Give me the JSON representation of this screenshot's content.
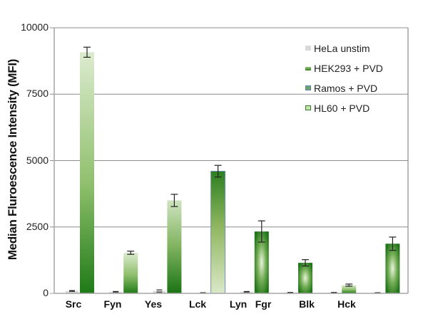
{
  "chart_data": {
    "type": "bar",
    "title": "",
    "xlabel": "",
    "ylabel": "Median Fluroescence Intensity (MFI)",
    "ylim": [
      0,
      10000
    ],
    "yticks": [
      0,
      2500,
      5000,
      7500,
      10000
    ],
    "grid": true,
    "legend_position": "upper right, inside plot",
    "categories": [
      "Src",
      "Fyn",
      "Yes",
      "Lck",
      "Lyn",
      "Fgr",
      "Blk",
      "Hck",
      ""
    ],
    "groups": [
      {
        "label": "Src",
        "hela": 90,
        "hela_err": 15,
        "stim": 9080,
        "stim_err": 190,
        "stim_series": "HEK293 + PVD",
        "style": "light-top"
      },
      {
        "label": "Fyn",
        "hela": 60,
        "hela_err": 10,
        "stim": 1530,
        "stim_err": 60,
        "stim_series": "HEK293 + PVD",
        "style": "light-top"
      },
      {
        "label": "Yes",
        "hela": 90,
        "hela_err": 40,
        "stim": 3500,
        "stim_err": 230,
        "stim_series": "HEK293 + PVD",
        "style": "dark-bottom"
      },
      {
        "label": "Lck",
        "hela": 20,
        "hela_err": 5,
        "stim": 4600,
        "stim_err": 220,
        "stim_series": "Ramos + PVD",
        "style": "dark-top"
      },
      {
        "label": "Lyn",
        "hela": 60,
        "hela_err": 10,
        "stim": 2330,
        "stim_err": 400,
        "stim_series": "HL60 + PVD",
        "style": "center-glow"
      },
      {
        "label": "Fgr",
        "hela": 30,
        "hela_err": 5,
        "stim": 1150,
        "stim_err": 120,
        "stim_series": "HL60 + PVD",
        "style": "center-glow"
      },
      {
        "label": "Blk",
        "hela": 30,
        "hela_err": 5,
        "stim": 310,
        "stim_err": 40,
        "stim_series": "HEK293 + PVD",
        "style": "light-top"
      },
      {
        "label": "Hck",
        "hela": 20,
        "hela_err": 5,
        "stim": 1870,
        "stim_err": 250,
        "stim_series": "HL60 + PVD",
        "style": "center-glow"
      }
    ],
    "series": [
      {
        "name": "HeLa unstim",
        "color": "#d9d9d9"
      },
      {
        "name": "HEK293 + PVD",
        "color": "#2e7d1e"
      },
      {
        "name": "Ramos + PVD",
        "color": "#5a9a5a"
      },
      {
        "name": "HL60 + PVD",
        "color": "#3f8f2a"
      }
    ]
  },
  "axis": {
    "tick_labels": [
      "10000",
      "7500",
      "5000",
      "2500",
      "0"
    ],
    "x_labels": [
      "Src",
      "Fyn",
      "Yes",
      "Lck",
      "Lyn",
      "Fgr",
      "Blk",
      "Hck"
    ]
  },
  "legend": {
    "items": [
      "HeLa unstim",
      "HEK293 + PVD",
      "Ramos + PVD",
      "HL60 + PVD"
    ]
  }
}
